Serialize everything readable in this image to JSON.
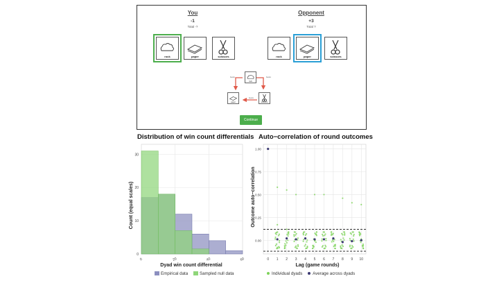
{
  "game": {
    "you_header": "You",
    "you_score": "-1",
    "you_total": "Total -?",
    "opponent_header": "Opponent",
    "opponent_score": "+3",
    "opponent_total": "Total ?",
    "cards": [
      "rock",
      "paper",
      "scissors"
    ],
    "you_selected": "rock",
    "opponent_selected": "paper",
    "beats_label": "beats",
    "continue_label": "Continue",
    "colors": {
      "you_select": "#4cae4c",
      "opponent_select": "#2a9fd6",
      "arrow": "#e05a4a",
      "button": "#4cae4c"
    }
  },
  "hist": {
    "title": "Distribution of win count differentials",
    "legend": [
      "Empirical data",
      "Sampled null data"
    ],
    "colors": {
      "empirical": "#8c8fbf",
      "null": "#8fd67a"
    }
  },
  "acf": {
    "title": "Auto−correlation of round outcomes",
    "legend": [
      "Individual dyads",
      "Average across dyads"
    ],
    "colors": {
      "individual": "#7ed35a",
      "average": "#3c3a72"
    }
  },
  "chart_data": [
    {
      "type": "bar",
      "title": "Distribution of win count differentials",
      "xlabel": "Dyad win count differential",
      "ylabel": "Count (equal scales)",
      "x_ticks": [
        "0",
        "20",
        "40",
        "60"
      ],
      "y_ticks": [
        "0",
        "10",
        "20",
        "30"
      ],
      "xlim": [
        0,
        60
      ],
      "ylim": [
        0,
        33
      ],
      "bin_edges": [
        0,
        10,
        20,
        30,
        40,
        50,
        60
      ],
      "series": [
        {
          "name": "Empirical data",
          "values": [
            17,
            18,
            12,
            6,
            4,
            1
          ]
        },
        {
          "name": "Sampled null data",
          "values": [
            31,
            18,
            7,
            1.5,
            0,
            0
          ]
        }
      ],
      "grid": true,
      "legend_position": "bottom"
    },
    {
      "type": "scatter",
      "title": "Auto−correlation of round outcomes",
      "xlabel": "Lag (game rounds)",
      "ylabel": "Outcome auto−correlation",
      "x_ticks": [
        "0",
        "1",
        "2",
        "3",
        "4",
        "5",
        "6",
        "7",
        "8",
        "9",
        "10"
      ],
      "y_ticks": [
        "0.00",
        "0.25",
        "0.50",
        "0.75",
        "1.00"
      ],
      "xlim": [
        -0.5,
        10.5
      ],
      "ylim": [
        -0.15,
        1.05
      ],
      "reference_lines": [
        0.12,
        -0.12
      ],
      "series": [
        {
          "name": "Average across dyads",
          "x": [
            0,
            1,
            2,
            3,
            4,
            5,
            6,
            7,
            8,
            9,
            10
          ],
          "y": [
            1.0,
            0.01,
            0.02,
            0.01,
            0.02,
            0.01,
            0.01,
            0.02,
            -0.02,
            -0.01,
            0.0
          ]
        },
        {
          "name": "Individual dyads",
          "x": [
            1,
            1,
            1,
            2,
            2,
            3,
            5,
            6,
            8,
            9,
            10
          ],
          "y": [
            0.58,
            0.17,
            -0.08,
            0.55,
            0.12,
            0.5,
            0.5,
            0.5,
            0.46,
            0.41,
            0.39
          ]
        }
      ],
      "grid": true,
      "legend_position": "bottom"
    }
  ]
}
